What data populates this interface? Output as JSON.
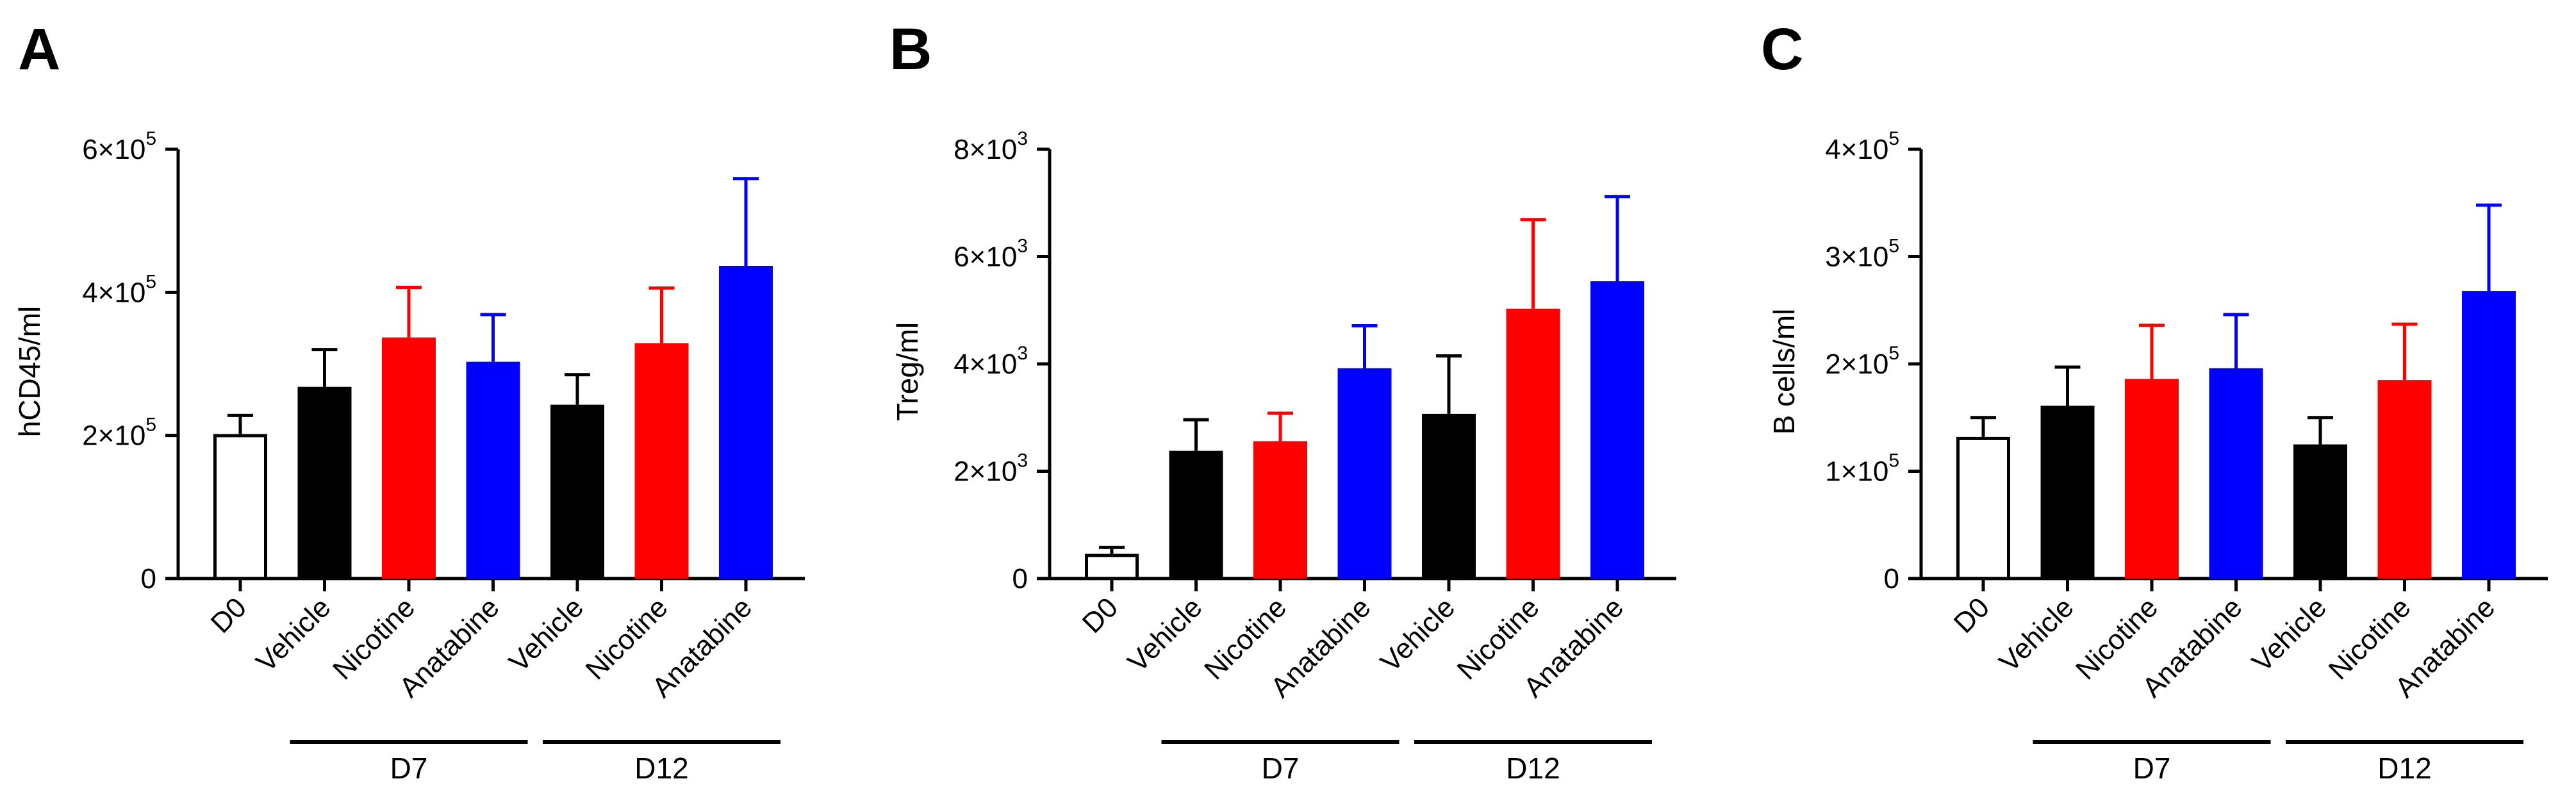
{
  "chart_data": [
    {
      "type": "bar",
      "panel": "A",
      "ylabel": "hCD45/ml",
      "ylim": [
        0,
        600000
      ],
      "yticks": [
        {
          "value": 0,
          "base": "0",
          "exp": ""
        },
        {
          "value": 200000,
          "base": "2×10",
          "exp": "5"
        },
        {
          "value": 400000,
          "base": "4×10",
          "exp": "5"
        },
        {
          "value": 600000,
          "base": "6×10",
          "exp": "5"
        }
      ],
      "categories": [
        "D0",
        "Vehicle",
        "Nicotine",
        "Anatabine",
        "Vehicle",
        "Nicotine",
        "Anatabine"
      ],
      "values": [
        202000,
        268000,
        337000,
        303000,
        243000,
        329000,
        437000
      ],
      "errors": [
        26000,
        52000,
        70000,
        66000,
        42000,
        77000,
        122000
      ],
      "colors": [
        "#ffffff",
        "#000000",
        "#ff0000",
        "#0000ff",
        "#000000",
        "#ff0000",
        "#0000ff"
      ],
      "groups": [
        {
          "label": "D7",
          "from": 1,
          "to": 3
        },
        {
          "label": "D12",
          "from": 4,
          "to": 6
        }
      ]
    },
    {
      "type": "bar",
      "panel": "B",
      "ylabel": "Treg/ml",
      "ylim": [
        0,
        8000
      ],
      "yticks": [
        {
          "value": 0,
          "base": "0",
          "exp": ""
        },
        {
          "value": 2000,
          "base": "2×10",
          "exp": "3"
        },
        {
          "value": 4000,
          "base": "4×10",
          "exp": "3"
        },
        {
          "value": 6000,
          "base": "6×10",
          "exp": "3"
        },
        {
          "value": 8000,
          "base": "8×10",
          "exp": "3"
        }
      ],
      "categories": [
        "D0",
        "Vehicle",
        "Nicotine",
        "Anatabine",
        "Vehicle",
        "Nicotine",
        "Anatabine"
      ],
      "values": [
        460,
        2380,
        2560,
        3920,
        3070,
        5030,
        5540
      ],
      "errors": [
        120,
        580,
        520,
        790,
        1080,
        1660,
        1580
      ],
      "colors": [
        "#ffffff",
        "#000000",
        "#ff0000",
        "#0000ff",
        "#000000",
        "#ff0000",
        "#0000ff"
      ],
      "groups": [
        {
          "label": "D7",
          "from": 1,
          "to": 3
        },
        {
          "label": "D12",
          "from": 4,
          "to": 6
        }
      ]
    },
    {
      "type": "bar",
      "panel": "C",
      "ylabel": "B cells/ml",
      "ylim": [
        0,
        400000
      ],
      "yticks": [
        {
          "value": 0,
          "base": "0",
          "exp": ""
        },
        {
          "value": 100000,
          "base": "1×10",
          "exp": "5"
        },
        {
          "value": 200000,
          "base": "2×10",
          "exp": "5"
        },
        {
          "value": 300000,
          "base": "3×10",
          "exp": "5"
        },
        {
          "value": 400000,
          "base": "4×10",
          "exp": "5"
        }
      ],
      "categories": [
        "D0",
        "Vehicle",
        "Nicotine",
        "Anatabine",
        "Vehicle",
        "Nicotine",
        "Anatabine"
      ],
      "values": [
        132000,
        161000,
        186000,
        196000,
        125000,
        185000,
        268000
      ],
      "errors": [
        18000,
        36000,
        50000,
        50000,
        25000,
        52000,
        80000
      ],
      "colors": [
        "#ffffff",
        "#000000",
        "#ff0000",
        "#0000ff",
        "#000000",
        "#ff0000",
        "#0000ff"
      ],
      "groups": [
        {
          "label": "D7",
          "from": 1,
          "to": 3
        },
        {
          "label": "D12",
          "from": 4,
          "to": 6
        }
      ]
    }
  ]
}
